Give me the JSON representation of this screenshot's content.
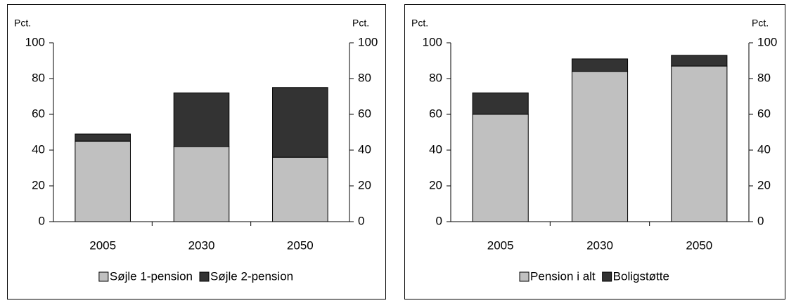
{
  "chart_data": [
    {
      "type": "bar",
      "stacked": true,
      "ylabel": "Pct.",
      "y2label": "Pct.",
      "categories": [
        "2005",
        "2030",
        "2050"
      ],
      "series": [
        {
          "name": "Søjle 1-pension",
          "color": "#c0c0c0",
          "values": [
            45,
            42,
            36
          ]
        },
        {
          "name": "Søjle 2-pension",
          "color": "#333333",
          "values": [
            4,
            30,
            39
          ]
        }
      ],
      "ylim": [
        0,
        100
      ],
      "yticks": [
        0,
        20,
        40,
        60,
        80,
        100
      ],
      "y2lim": [
        0,
        100
      ],
      "y2ticks": [
        0,
        20,
        40,
        60,
        80,
        100
      ],
      "grid": false,
      "legend": "bottom"
    },
    {
      "type": "bar",
      "stacked": true,
      "ylabel": "Pct.",
      "y2label": "Pct.",
      "categories": [
        "2005",
        "2030",
        "2050"
      ],
      "series": [
        {
          "name": "Pension i alt",
          "color": "#c0c0c0",
          "values": [
            60,
            84,
            87
          ]
        },
        {
          "name": "Boligstøtte",
          "color": "#333333",
          "values": [
            12,
            7,
            6
          ]
        }
      ],
      "ylim": [
        0,
        100
      ],
      "yticks": [
        0,
        20,
        40,
        60,
        80,
        100
      ],
      "y2lim": [
        0,
        100
      ],
      "y2ticks": [
        0,
        20,
        40,
        60,
        80,
        100
      ],
      "grid": false,
      "legend": "bottom"
    }
  ]
}
